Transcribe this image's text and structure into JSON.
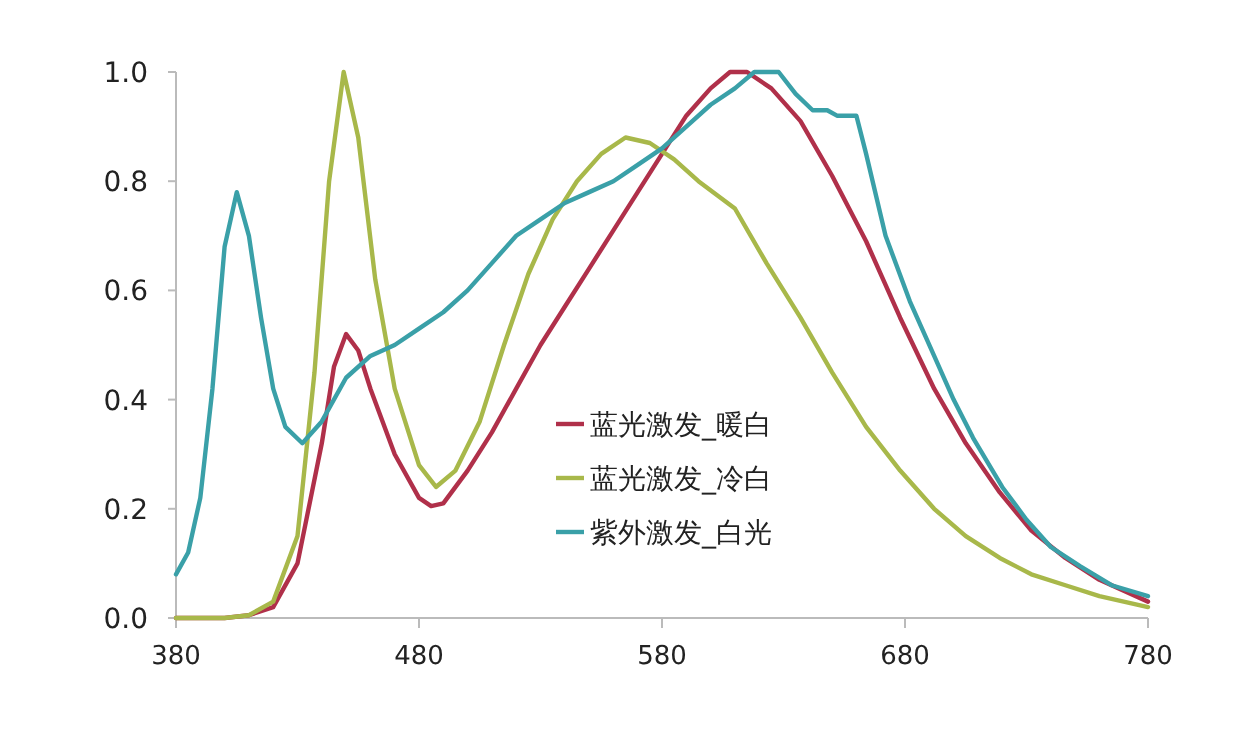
{
  "chart_data": {
    "type": "line",
    "xlim": [
      380,
      780
    ],
    "xticks": [
      380,
      480,
      580,
      680,
      780
    ],
    "ylim": [
      0,
      1
    ],
    "yticks": [
      {
        "value": 0,
        "label": "0.0"
      },
      {
        "value": 0.2,
        "label": "0.2"
      },
      {
        "value": 0.4,
        "label": "0.4"
      },
      {
        "value": 0.6,
        "label": "0.6"
      },
      {
        "value": 0.8,
        "label": "0.8"
      },
      {
        "value": 1,
        "label": "1.0"
      }
    ],
    "grid": false,
    "legend": "center",
    "marker": "none",
    "line_style": "solid",
    "series": [
      {
        "name": "蓝光激发_暖白",
        "color": "#b0304a",
        "x": [
          380,
          400,
          410,
          420,
          430,
          440,
          445,
          450,
          455,
          460,
          470,
          480,
          485,
          490,
          500,
          510,
          520,
          530,
          540,
          550,
          560,
          570,
          580,
          590,
          600,
          608,
          615,
          625,
          637,
          650,
          664,
          678,
          692,
          705,
          719,
          732,
          746,
          760,
          780
        ],
        "values": [
          0,
          0,
          0.005,
          0.02,
          0.1,
          0.32,
          0.46,
          0.52,
          0.49,
          0.42,
          0.3,
          0.22,
          0.205,
          0.21,
          0.27,
          0.34,
          0.42,
          0.5,
          0.57,
          0.64,
          0.71,
          0.78,
          0.85,
          0.92,
          0.97,
          1.0,
          1.0,
          0.97,
          0.91,
          0.81,
          0.69,
          0.55,
          0.42,
          0.32,
          0.23,
          0.16,
          0.11,
          0.07,
          0.03
        ]
      },
      {
        "name": "蓝光激发_冷白",
        "color": "#a8b84a",
        "x": [
          380,
          400,
          410,
          420,
          430,
          437,
          443,
          449,
          455,
          462,
          470,
          480,
          487,
          495,
          505,
          515,
          525,
          535,
          545,
          555,
          565,
          575,
          585,
          595,
          610,
          623,
          637,
          650,
          664,
          678,
          692,
          705,
          719,
          732,
          746,
          760,
          780
        ],
        "values": [
          0,
          0,
          0.005,
          0.03,
          0.15,
          0.45,
          0.8,
          1.0,
          0.88,
          0.62,
          0.42,
          0.28,
          0.24,
          0.27,
          0.36,
          0.5,
          0.63,
          0.73,
          0.8,
          0.85,
          0.88,
          0.87,
          0.84,
          0.8,
          0.75,
          0.65,
          0.55,
          0.45,
          0.35,
          0.27,
          0.2,
          0.15,
          0.11,
          0.08,
          0.06,
          0.04,
          0.02
        ]
      },
      {
        "name": "紫外激发_白光",
        "color": "#3aa0a8",
        "x": [
          380,
          385,
          390,
          395,
          400,
          405,
          410,
          415,
          420,
          425,
          432,
          440,
          450,
          460,
          470,
          480,
          490,
          500,
          510,
          520,
          530,
          540,
          550,
          560,
          570,
          580,
          590,
          600,
          610,
          618,
          628,
          635,
          642,
          648,
          652,
          660,
          664,
          672,
          682,
          692,
          700,
          708,
          720,
          730,
          740,
          752,
          765,
          780
        ],
        "values": [
          0.08,
          0.12,
          0.22,
          0.42,
          0.68,
          0.78,
          0.7,
          0.55,
          0.42,
          0.35,
          0.32,
          0.36,
          0.44,
          0.48,
          0.5,
          0.53,
          0.56,
          0.6,
          0.65,
          0.7,
          0.73,
          0.76,
          0.78,
          0.8,
          0.83,
          0.86,
          0.9,
          0.94,
          0.97,
          1.0,
          1.0,
          0.96,
          0.93,
          0.93,
          0.92,
          0.92,
          0.85,
          0.7,
          0.58,
          0.48,
          0.4,
          0.33,
          0.24,
          0.18,
          0.13,
          0.095,
          0.06,
          0.04
        ]
      }
    ]
  }
}
